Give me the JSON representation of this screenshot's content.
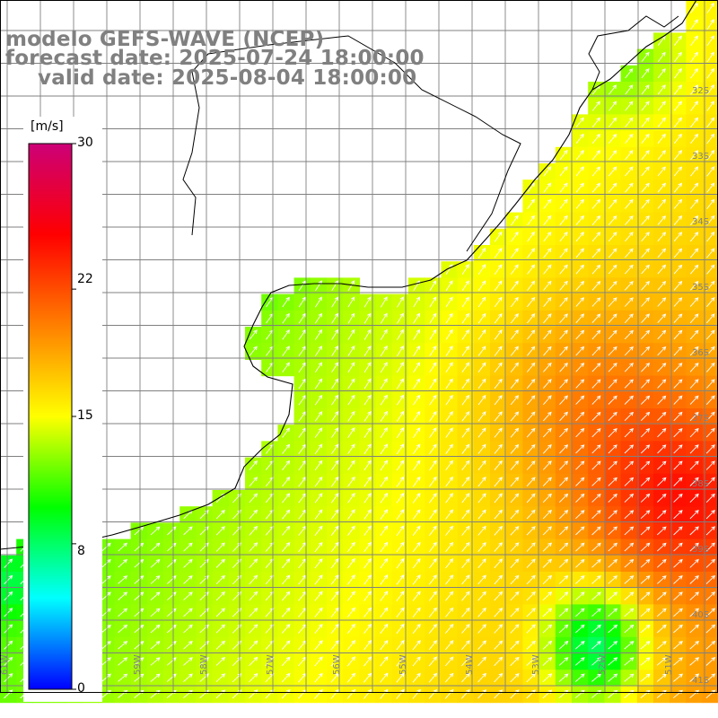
{
  "title": {
    "line1": "modelo GEFS-WAVE (NCEP)",
    "line2": "forecast date: 2025-07-24 18:00:00",
    "line3": "valid date: 2025-08-04 18:00:00"
  },
  "colorbar": {
    "units": "[m/s]",
    "min": 0,
    "max": 30,
    "ticks": [
      {
        "label": "30",
        "value": 30
      },
      {
        "label": "22",
        "value": 22
      },
      {
        "label": "15",
        "value": 15
      },
      {
        "label": "8",
        "value": 8
      },
      {
        "label": "0",
        "value": 0
      }
    ],
    "stops": [
      "#0000ff",
      "#00ffff",
      "#00ff00",
      "#ffff00",
      "#ff7f00",
      "#ff0000",
      "#cc0077"
    ]
  },
  "grid": {
    "lat_labels": [
      "32S",
      "33S",
      "34S",
      "35S",
      "36S",
      "37S",
      "38S",
      "39S",
      "40S",
      "41S"
    ],
    "lon_labels": [
      "61W",
      "60W",
      "59W",
      "58W",
      "57W",
      "56W",
      "55W",
      "54W",
      "53W",
      "52W",
      "51W"
    ]
  },
  "colors": {
    "land": "#ffffff",
    "grid_line": "#808080",
    "coast": "#000000",
    "arrow": "#ffffff",
    "title_text": "#808080"
  }
}
